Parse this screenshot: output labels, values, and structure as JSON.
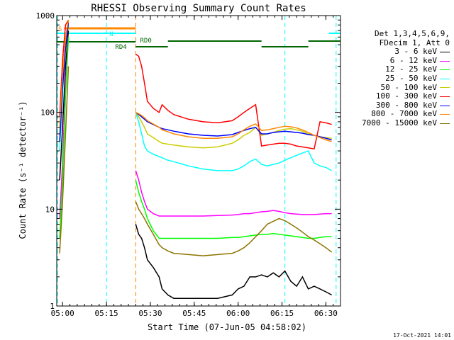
{
  "chart_data": {
    "type": "line",
    "title": "RHESSI Observing Summary Count Rates",
    "xlabel": "Start Time (07-Jun-05 04:58:02)",
    "ylabel": "Count Rate (s⁻¹ detector⁻¹)",
    "y_scale": "log",
    "ylim": [
      1,
      1000
    ],
    "xlim_minutes": [
      0,
      97
    ],
    "x_ticks": [
      {
        "label": "05:00",
        "min": 2
      },
      {
        "label": "05:15",
        "min": 17
      },
      {
        "label": "05:30",
        "min": 32
      },
      {
        "label": "05:45",
        "min": 47
      },
      {
        "label": "06:00",
        "min": 62
      },
      {
        "label": "06:15",
        "min": 77
      },
      {
        "label": "06:30",
        "min": 92
      }
    ],
    "y_ticks": [
      {
        "label": "1",
        "value": 1
      },
      {
        "label": "10",
        "value": 10
      },
      {
        "label": "100",
        "value": 100
      },
      {
        "label": "1000",
        "value": 1000
      }
    ],
    "grid": false,
    "legend_position": "right",
    "legend_header": [
      "Det 1,3,4,5,6,9,",
      "FDecim 1, Att 0"
    ],
    "series": [
      {
        "name": "3 - 6 keV",
        "color": "#000000",
        "x": [
          0,
          1,
          2,
          3,
          4,
          5,
          26,
          27,
          28,
          29,
          30,
          31,
          33,
          35,
          36,
          38,
          40,
          45,
          50,
          55,
          60,
          62,
          64,
          66,
          68,
          70,
          72,
          74,
          76,
          78,
          80,
          82,
          84,
          86,
          88,
          90,
          92,
          94
        ],
        "y": [
          null,
          20,
          70,
          300,
          700,
          null,
          null,
          7,
          5.5,
          5,
          4,
          3,
          2.5,
          2,
          1.5,
          1.3,
          1.2,
          1.2,
          1.2,
          1.2,
          1.3,
          1.5,
          1.6,
          2,
          2,
          2.1,
          2,
          2.2,
          2,
          2.3,
          1.8,
          1.6,
          2,
          1.5,
          1.6,
          1.5,
          1.4,
          1.3
        ]
      },
      {
        "name": "6 - 12 keV",
        "color": "#ff00ff",
        "x": [
          0,
          1,
          2,
          3,
          4,
          5,
          26,
          27,
          28,
          29,
          30,
          31,
          33,
          35,
          36,
          38,
          40,
          45,
          50,
          55,
          60,
          62,
          64,
          66,
          68,
          70,
          72,
          74,
          76,
          78,
          80,
          82,
          84,
          86,
          88,
          90,
          92,
          94
        ],
        "y": [
          null,
          8,
          30,
          200,
          600,
          null,
          null,
          25,
          20,
          15,
          12,
          10,
          9,
          8.5,
          8.5,
          8.5,
          8.5,
          8.5,
          8.5,
          8.6,
          8.7,
          8.8,
          9,
          9,
          9.2,
          9.4,
          9.5,
          9.7,
          9.5,
          9.2,
          9,
          8.9,
          8.8,
          8.8,
          8.8,
          8.9,
          9,
          9
        ]
      },
      {
        "name": "12 - 25 keV",
        "color": "#00ff00",
        "x": [
          0,
          1,
          2,
          3,
          4,
          5,
          26,
          27,
          28,
          29,
          30,
          31,
          33,
          35,
          36,
          38,
          40,
          45,
          50,
          55,
          60,
          62,
          64,
          66,
          68,
          70,
          72,
          74,
          76,
          78,
          80,
          82,
          84,
          86,
          88,
          90,
          92,
          94
        ],
        "y": [
          null,
          5,
          20,
          150,
          600,
          null,
          null,
          20,
          15,
          12,
          10,
          8,
          6,
          5,
          5,
          5,
          5,
          5,
          5,
          5,
          5.1,
          5.1,
          5.2,
          5.3,
          5.4,
          5.5,
          5.5,
          5.6,
          5.5,
          5.4,
          5.3,
          5.2,
          5.1,
          5,
          5,
          5.1,
          5.2,
          5.2
        ]
      },
      {
        "name": "25 - 50 keV",
        "color": "#00ffff",
        "x": [
          0,
          1,
          2,
          3,
          4,
          5,
          26,
          27,
          28,
          29,
          30,
          31,
          33,
          35,
          36,
          38,
          40,
          45,
          50,
          55,
          60,
          62,
          64,
          66,
          68,
          70,
          72,
          74,
          76,
          78,
          80,
          82,
          84,
          86,
          88,
          90,
          92,
          94
        ],
        "y": [
          null,
          40,
          150,
          500,
          800,
          null,
          null,
          100,
          80,
          60,
          45,
          40,
          37,
          35,
          34,
          32,
          31,
          28,
          26,
          25,
          25,
          26,
          28,
          31,
          33,
          29,
          28,
          29,
          30,
          32,
          34,
          36,
          38,
          40,
          30,
          28,
          27,
          25
        ]
      },
      {
        "name": "50 - 100 keV",
        "color": "#cccc00",
        "x": [
          0,
          1,
          2,
          3,
          4,
          5,
          26,
          27,
          28,
          29,
          30,
          31,
          33,
          35,
          36,
          38,
          40,
          45,
          50,
          55,
          60,
          62,
          64,
          66,
          68,
          70,
          72,
          74,
          76,
          78,
          80,
          82,
          84,
          86,
          88,
          90,
          92,
          94
        ],
        "y": [
          null,
          60,
          200,
          500,
          900,
          null,
          null,
          100,
          90,
          80,
          70,
          60,
          55,
          50,
          48,
          47,
          46,
          44,
          43,
          44,
          48,
          52,
          58,
          62,
          70,
          58,
          60,
          62,
          65,
          67,
          68,
          66,
          64,
          60,
          58,
          56,
          55,
          54
        ]
      },
      {
        "name": "100 - 300 keV",
        "color": "#ff0000",
        "x": [
          0,
          1,
          2,
          3,
          4,
          5,
          26,
          27,
          28,
          29,
          30,
          31,
          33,
          35,
          36,
          38,
          40,
          45,
          50,
          55,
          60,
          62,
          64,
          66,
          68,
          70,
          72,
          74,
          76,
          78,
          80,
          82,
          84,
          86,
          88,
          90,
          92,
          94
        ],
        "y": [
          null,
          90,
          350,
          800,
          900,
          null,
          null,
          400,
          380,
          300,
          200,
          130,
          110,
          100,
          120,
          105,
          95,
          85,
          80,
          78,
          82,
          90,
          100,
          110,
          120,
          45,
          46,
          47,
          48,
          48,
          47,
          45,
          44,
          43,
          42,
          80,
          78,
          75
        ]
      },
      {
        "name": "300 - 800 keV",
        "color": "#0000ff",
        "x": [
          0,
          1,
          2,
          3,
          4,
          5,
          26,
          27,
          28,
          29,
          30,
          31,
          33,
          35,
          36,
          38,
          40,
          45,
          50,
          55,
          60,
          62,
          64,
          66,
          68,
          70,
          72,
          74,
          76,
          78,
          80,
          82,
          84,
          86,
          88,
          90,
          92,
          94
        ],
        "y": [
          null,
          50,
          180,
          450,
          850,
          null,
          null,
          100,
          95,
          90,
          85,
          80,
          75,
          70,
          68,
          66,
          64,
          60,
          58,
          57,
          59,
          62,
          65,
          68,
          70,
          60,
          60,
          62,
          63,
          64,
          63,
          62,
          61,
          59,
          58,
          56,
          54,
          52
        ]
      },
      {
        "name": "800 - 7000 keV",
        "color": "#ff8800",
        "x": [
          0,
          1,
          2,
          3,
          4,
          5,
          26,
          27,
          28,
          29,
          30,
          31,
          33,
          35,
          36,
          38,
          40,
          45,
          50,
          55,
          60,
          62,
          64,
          66,
          68,
          70,
          72,
          74,
          76,
          78,
          80,
          82,
          84,
          86,
          88,
          90,
          92,
          94
        ],
        "y": [
          null,
          70,
          250,
          600,
          900,
          null,
          null,
          100,
          97,
          93,
          88,
          82,
          76,
          70,
          66,
          63,
          60,
          56,
          54,
          54,
          56,
          60,
          66,
          72,
          76,
          65,
          66,
          68,
          70,
          72,
          71,
          69,
          66,
          62,
          58,
          55,
          52,
          50
        ]
      },
      {
        "name": "7000 - 15000 keV",
        "color": "#8b7500",
        "x": [
          0,
          1,
          2,
          3,
          4,
          5,
          26,
          27,
          28,
          29,
          30,
          31,
          33,
          35,
          36,
          38,
          40,
          45,
          50,
          55,
          60,
          62,
          64,
          66,
          68,
          70,
          72,
          74,
          76,
          78,
          80,
          82,
          84,
          86,
          88,
          90,
          92,
          94
        ],
        "y": [
          null,
          3.5,
          12,
          60,
          300,
          null,
          null,
          12,
          10,
          9,
          8,
          7,
          5.5,
          4.3,
          4,
          3.7,
          3.5,
          3.4,
          3.3,
          3.4,
          3.5,
          3.7,
          4,
          4.5,
          5.2,
          6,
          7,
          7.5,
          8,
          7.6,
          7,
          6.4,
          5.8,
          5.2,
          4.8,
          4.4,
          4,
          3.6
        ]
      }
    ],
    "annotations": {
      "s_label": "S",
      "n_label": "N",
      "rd4_label": "RD4",
      "rd0_label": "RD0"
    },
    "vertical_markers": [
      {
        "min": 0.3,
        "color": "#00ffff"
      },
      {
        "min": 17,
        "color": "#00ffff"
      },
      {
        "min": 27,
        "color": "#ff8800"
      },
      {
        "min": 78,
        "color": "#00ffff"
      },
      {
        "min": 95.5,
        "color": "#00ffff"
      }
    ]
  },
  "legend_header_lines": [
    "Det 1,3,4,5,6,9,",
    "FDecim 1, Att 0"
  ],
  "timestamp": "17-Oct-2021 14:01"
}
